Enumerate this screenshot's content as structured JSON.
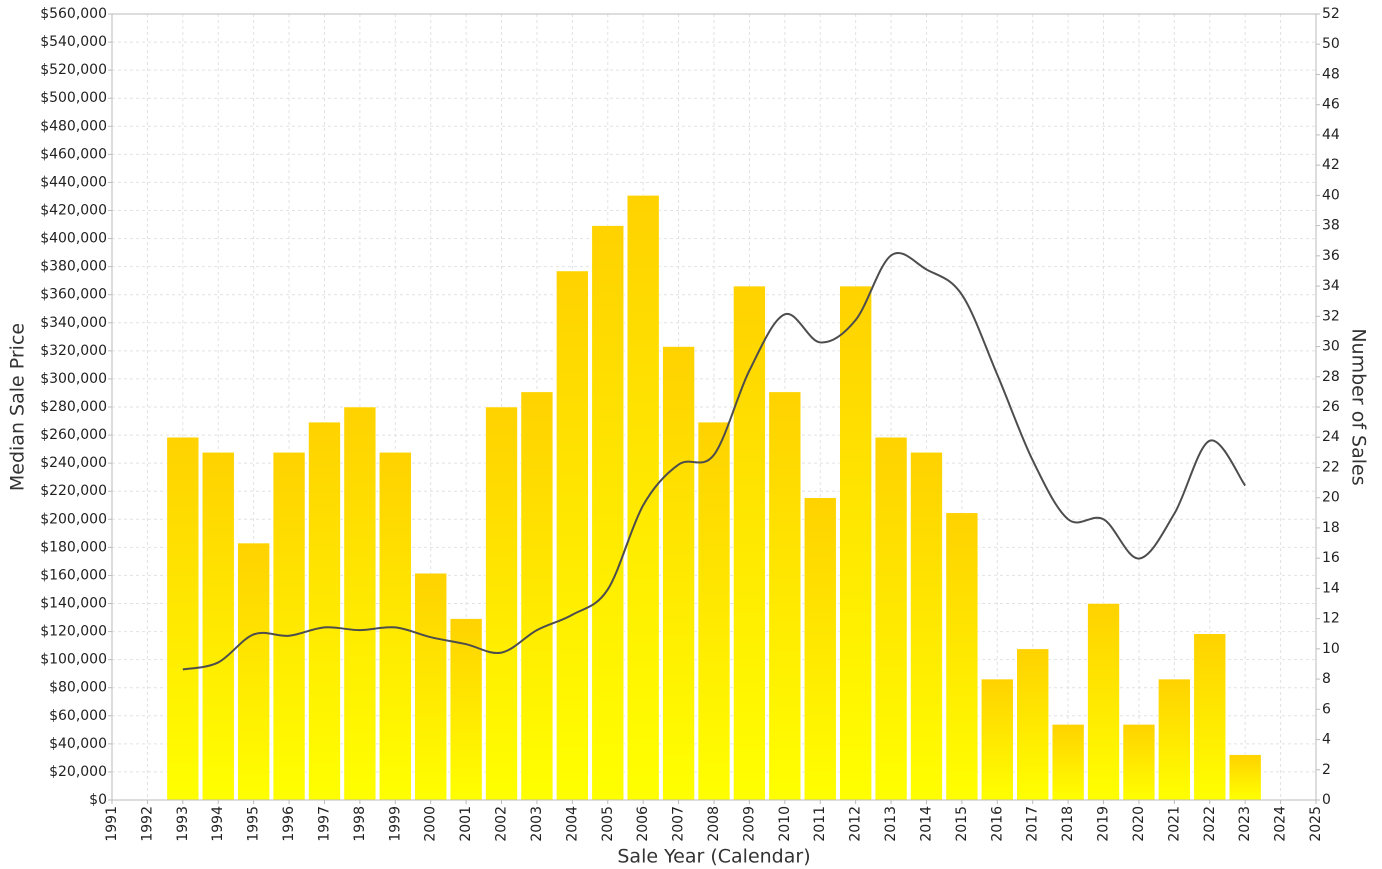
{
  "chart_data": {
    "type": "bar-line",
    "x_label": "Sale Year (Calendar)",
    "y_label": "Median Sale Price",
    "y2_label": "Number of Sales",
    "x": [
      1993,
      1994,
      1995,
      1996,
      1997,
      1998,
      1999,
      2000,
      2001,
      2002,
      2003,
      2004,
      2005,
      2006,
      2007,
      2008,
      2009,
      2010,
      2011,
      2012,
      2013,
      2014,
      2015,
      2016,
      2017,
      2018,
      2019,
      2020,
      2021,
      2022,
      2023
    ],
    "series": [
      {
        "name": "Number of Sales",
        "type": "bar",
        "axis": "y2",
        "color": "#ffd200",
        "values": [
          24,
          23,
          17,
          23,
          25,
          26,
          23,
          15,
          12,
          26,
          27,
          35,
          38,
          40,
          30,
          25,
          34,
          27,
          20,
          34,
          24,
          23,
          19,
          8,
          10,
          5,
          13,
          5,
          8,
          11,
          3
        ]
      },
      {
        "name": "Median Sale Price",
        "type": "line",
        "axis": "y",
        "color": "#4d4d4d",
        "values": [
          93000,
          98000,
          118000,
          117000,
          123000,
          121000,
          123000,
          116000,
          111000,
          105000,
          121000,
          132000,
          150000,
          210000,
          239000,
          246000,
          306000,
          346000,
          326000,
          342000,
          388000,
          378000,
          360000,
          303000,
          242000,
          200000,
          200000,
          172000,
          204000,
          256000,
          224000
        ]
      }
    ],
    "xlim": [
      1991,
      2025
    ],
    "xticks": [
      1991,
      1992,
      1993,
      1994,
      1995,
      1996,
      1997,
      1998,
      1999,
      2000,
      2001,
      2002,
      2003,
      2004,
      2005,
      2006,
      2007,
      2008,
      2009,
      2010,
      2011,
      2012,
      2013,
      2014,
      2015,
      2016,
      2017,
      2018,
      2019,
      2020,
      2021,
      2022,
      2023,
      2024,
      2025
    ],
    "ylim": [
      0,
      560000
    ],
    "yticks": [
      {
        "value": 0,
        "label": "$0"
      },
      {
        "value": 20000,
        "label": "$20,000"
      },
      {
        "value": 40000,
        "label": "$40,000"
      },
      {
        "value": 60000,
        "label": "$60,000"
      },
      {
        "value": 80000,
        "label": "$80,000"
      },
      {
        "value": 100000,
        "label": "$100,000"
      },
      {
        "value": 120000,
        "label": "$120,000"
      },
      {
        "value": 140000,
        "label": "$140,000"
      },
      {
        "value": 160000,
        "label": "$160,000"
      },
      {
        "value": 180000,
        "label": "$180,000"
      },
      {
        "value": 200000,
        "label": "$200,000"
      },
      {
        "value": 220000,
        "label": "$220,000"
      },
      {
        "value": 240000,
        "label": "$240,000"
      },
      {
        "value": 260000,
        "label": "$260,000"
      },
      {
        "value": 280000,
        "label": "$280,000"
      },
      {
        "value": 300000,
        "label": "$300,000"
      },
      {
        "value": 320000,
        "label": "$320,000"
      },
      {
        "value": 340000,
        "label": "$340,000"
      },
      {
        "value": 360000,
        "label": "$360,000"
      },
      {
        "value": 380000,
        "label": "$380,000"
      },
      {
        "value": 400000,
        "label": "$400,000"
      },
      {
        "value": 420000,
        "label": "$420,000"
      },
      {
        "value": 440000,
        "label": "$440,000"
      },
      {
        "value": 460000,
        "label": "$460,000"
      },
      {
        "value": 480000,
        "label": "$480,000"
      },
      {
        "value": 500000,
        "label": "$500,000"
      },
      {
        "value": 520000,
        "label": "$520,000"
      },
      {
        "value": 540000,
        "label": "$540,000"
      },
      {
        "value": 560000,
        "label": "$560,000"
      }
    ],
    "y2lim": [
      0,
      52
    ],
    "y2ticks": [
      0,
      2,
      4,
      6,
      8,
      10,
      12,
      14,
      16,
      18,
      20,
      22,
      24,
      26,
      28,
      30,
      32,
      34,
      36,
      38,
      40,
      42,
      44,
      46,
      48,
      50,
      52
    ],
    "grid": true
  }
}
